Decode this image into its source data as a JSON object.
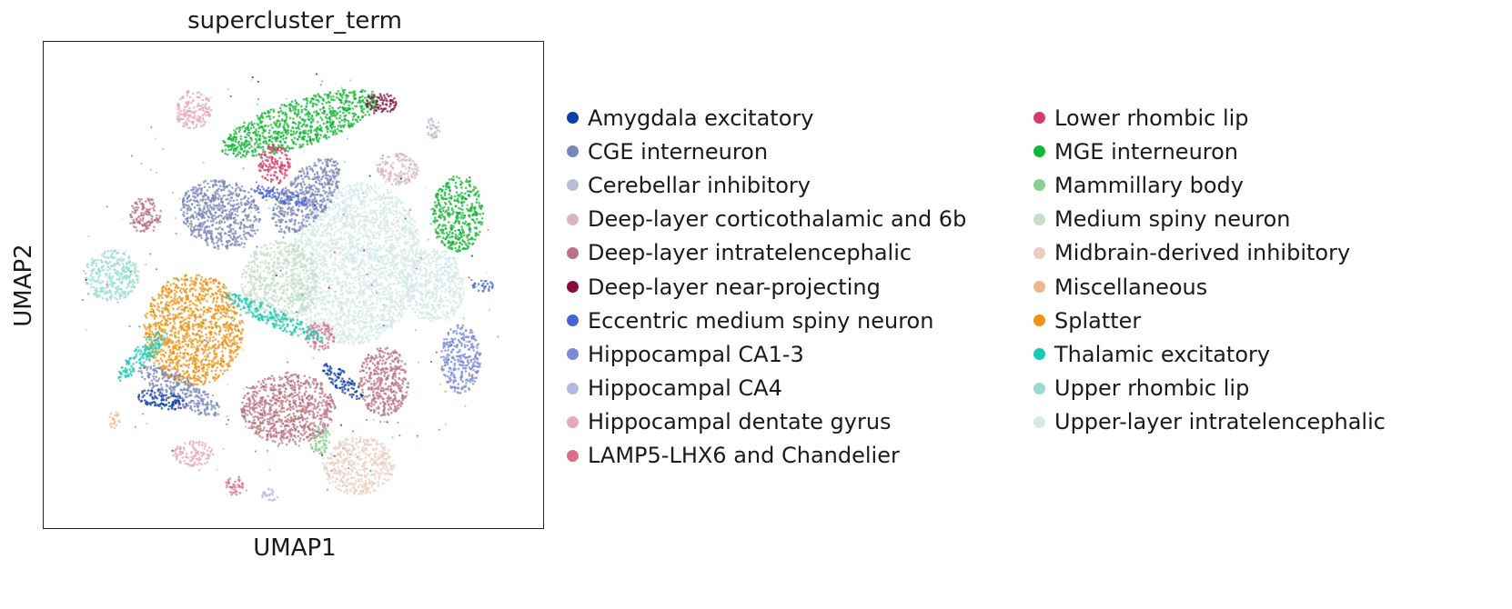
{
  "chart_data": {
    "type": "scatter",
    "title": "supercluster_term",
    "xlabel": "UMAP1",
    "ylabel": "UMAP2",
    "grid": false,
    "ticks": false,
    "legend_placement": "right",
    "legend_columns": 2,
    "series": [
      {
        "name": "Amygdala excitatory",
        "color": "#0b3ea6"
      },
      {
        "name": "CGE interneuron",
        "color": "#7a86b8"
      },
      {
        "name": "Cerebellar inhibitory",
        "color": "#babdd6"
      },
      {
        "name": "Deep-layer corticothalamic and 6b",
        "color": "#d7b8c0"
      },
      {
        "name": "Deep-layer intratelencephalic",
        "color": "#b97282"
      },
      {
        "name": "Deep-layer near-projecting",
        "color": "#8b0c3c"
      },
      {
        "name": "Eccentric medium spiny neuron",
        "color": "#4a63d6"
      },
      {
        "name": "Hippocampal CA1-3",
        "color": "#7b8ad9"
      },
      {
        "name": "Hippocampal CA4",
        "color": "#b3b8e3"
      },
      {
        "name": "Hippocampal dentate gyrus",
        "color": "#e4aab8"
      },
      {
        "name": "LAMP5-LHX6 and Chandelier",
        "color": "#dc6f88"
      },
      {
        "name": "Lower rhombic lip",
        "color": "#d63d6c"
      },
      {
        "name": "MGE interneuron",
        "color": "#13b836"
      },
      {
        "name": "Mammillary body",
        "color": "#88d190"
      },
      {
        "name": "Medium spiny neuron",
        "color": "#c6dfca"
      },
      {
        "name": "Midbrain-derived inhibitory",
        "color": "#e8cfc2"
      },
      {
        "name": "Miscellaneous",
        "color": "#efb58d"
      },
      {
        "name": "Splatter",
        "color": "#ec9418"
      },
      {
        "name": "Thalamic excitatory",
        "color": "#18c9b3"
      },
      {
        "name": "Upper rhombic lip",
        "color": "#97dccf"
      },
      {
        "name": "Upper-layer intratelencephalic",
        "color": "#d3e8e7"
      }
    ]
  }
}
